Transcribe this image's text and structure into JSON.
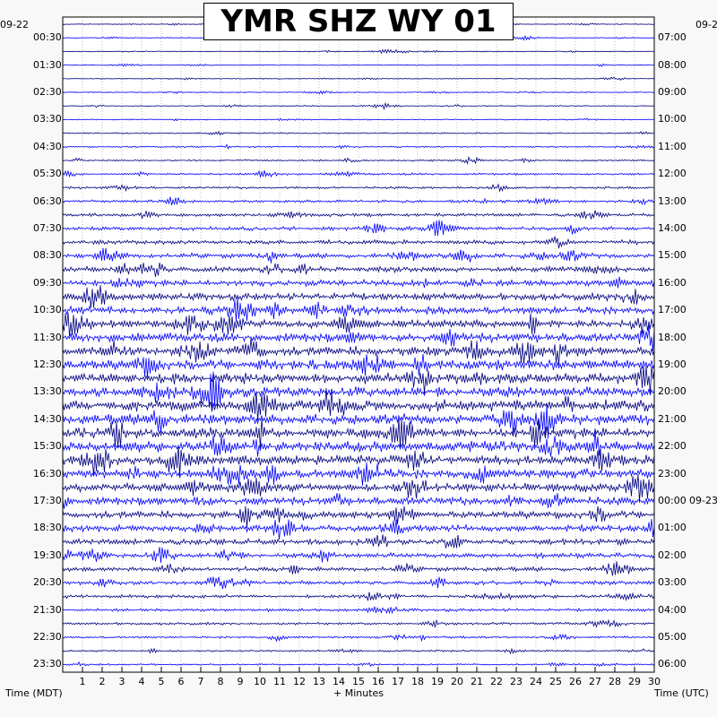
{
  "chart_data": {
    "type": "line",
    "title": "YMR SHZ WY 01",
    "xlabel": "+ Minutes",
    "left_axis_label": "Time (MDT)",
    "right_axis_label": "Time (UTC)",
    "left_date": "09-22",
    "right_date_top": "09-2",
    "right_date_rollover": "09-23",
    "x_ticks": [
      "1",
      "2",
      "3",
      "4",
      "5",
      "6",
      "7",
      "8",
      "9",
      "10",
      "11",
      "12",
      "13",
      "14",
      "15",
      "16",
      "17",
      "18",
      "19",
      "20",
      "21",
      "22",
      "23",
      "24",
      "25",
      "26",
      "27",
      "28",
      "29",
      "30"
    ],
    "xlim": [
      0,
      30
    ],
    "rows": 48,
    "row_minutes": 30,
    "left_hour_labels": [
      "00:30",
      "01:30",
      "02:30",
      "03:30",
      "04:30",
      "05:30",
      "06:30",
      "07:30",
      "08:30",
      "09:30",
      "10:30",
      "11:30",
      "12:30",
      "13:30",
      "14:30",
      "15:30",
      "16:30",
      "17:30",
      "18:30",
      "19:30",
      "20:30",
      "21:30",
      "22:30",
      "23:30"
    ],
    "right_hour_labels": [
      "07:00",
      "08:00",
      "09:00",
      "10:00",
      "11:00",
      "12:00",
      "13:00",
      "14:00",
      "15:00",
      "16:00",
      "17:00",
      "18:00",
      "19:00",
      "20:00",
      "21:00",
      "22:00",
      "23:00",
      "00:00",
      "01:00",
      "02:00",
      "03:00",
      "04:00",
      "05:00",
      "06:00"
    ],
    "trace_colors": [
      "#000080",
      "#0000ff"
    ],
    "grid": true
  }
}
